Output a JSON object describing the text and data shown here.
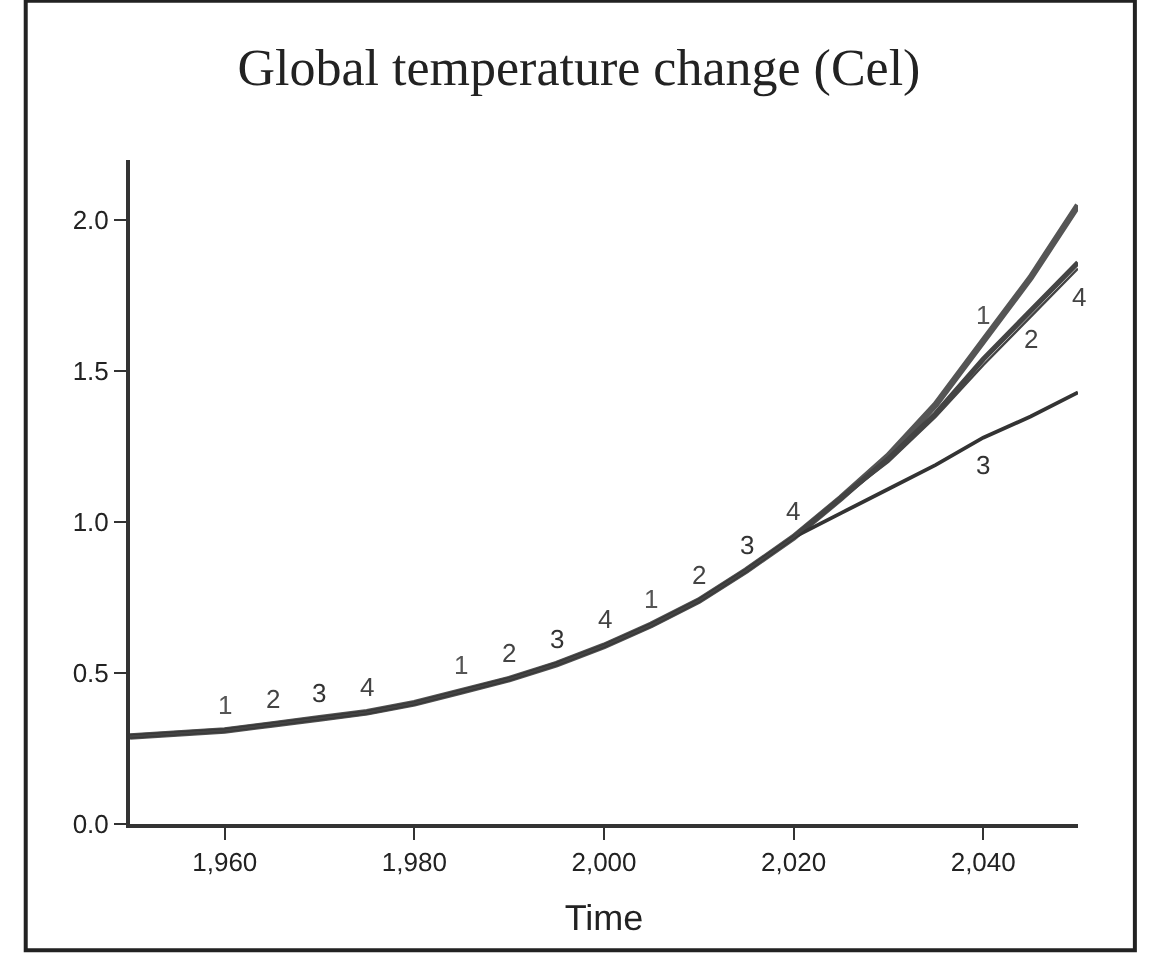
{
  "chart_data": {
    "type": "line",
    "title": "Global temperature change (Cel)",
    "xlabel": "Time",
    "x": [
      1950,
      1955,
      1960,
      1965,
      1970,
      1975,
      1980,
      1985,
      1990,
      1995,
      2000,
      2005,
      2010,
      2015,
      2020,
      2025,
      2030,
      2035,
      2040,
      2045,
      2050
    ],
    "series": [
      {
        "name": "1",
        "color": "#555555",
        "values": [
          0.29,
          0.3,
          0.31,
          0.33,
          0.35,
          0.37,
          0.4,
          0.44,
          0.48,
          0.53,
          0.59,
          0.66,
          0.74,
          0.84,
          0.95,
          1.08,
          1.22,
          1.39,
          1.6,
          1.81,
          2.05
        ]
      },
      {
        "name": "2",
        "color": "#444444",
        "values": [
          0.29,
          0.3,
          0.31,
          0.33,
          0.35,
          0.37,
          0.4,
          0.44,
          0.48,
          0.53,
          0.59,
          0.66,
          0.74,
          0.84,
          0.95,
          1.08,
          1.21,
          1.36,
          1.54,
          1.7,
          1.86
        ]
      },
      {
        "name": "3",
        "color": "#333333",
        "values": [
          0.29,
          0.3,
          0.31,
          0.33,
          0.35,
          0.37,
          0.4,
          0.44,
          0.48,
          0.53,
          0.59,
          0.66,
          0.74,
          0.84,
          0.95,
          1.03,
          1.11,
          1.19,
          1.28,
          1.35,
          1.43
        ]
      },
      {
        "name": "4",
        "color": "#444444",
        "values": [
          0.29,
          0.3,
          0.31,
          0.33,
          0.35,
          0.37,
          0.4,
          0.44,
          0.48,
          0.53,
          0.59,
          0.66,
          0.74,
          0.84,
          0.95,
          1.08,
          1.2,
          1.35,
          1.52,
          1.68,
          1.84
        ]
      }
    ],
    "xlim": [
      1950,
      2050
    ],
    "xticks": [
      {
        "value": 1960,
        "label": "1,960"
      },
      {
        "value": 1980,
        "label": "1,980"
      },
      {
        "value": 2000,
        "label": "2,000"
      },
      {
        "value": 2020,
        "label": "2,020"
      },
      {
        "value": 2040,
        "label": "2,040"
      }
    ],
    "ylim": [
      0,
      2.2
    ],
    "yticks": [
      {
        "value": 0,
        "label": "0.0"
      },
      0.5,
      {
        "value": 1,
        "label": "1.0"
      },
      1.5,
      {
        "value": 2,
        "label": "2.0"
      }
    ],
    "legend": false,
    "line_style": "solid",
    "marker": "none"
  }
}
